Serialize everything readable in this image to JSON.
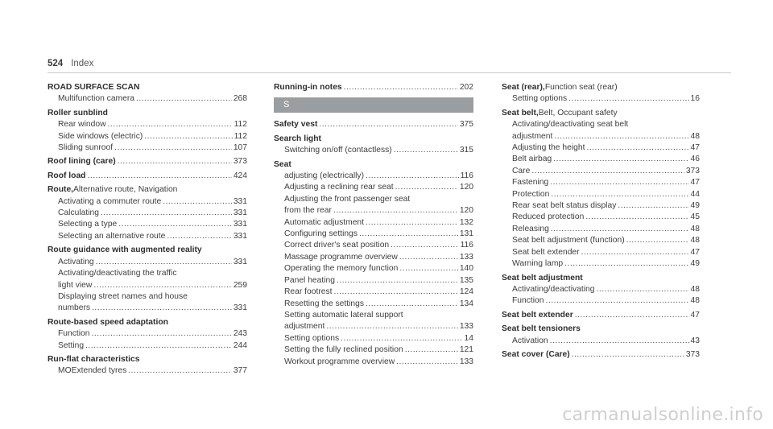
{
  "header": {
    "page_number": "524",
    "title": "Index"
  },
  "col1": [
    {
      "term": "ROAD SURFACE SCAN",
      "subs": [
        {
          "lines": [
            "Multifunction camera"
          ],
          "page": "268"
        }
      ]
    },
    {
      "term": "Roller sunblind",
      "subs": [
        {
          "lines": [
            "Rear window"
          ],
          "page": "112"
        },
        {
          "lines": [
            "Side windows (electric)"
          ],
          "page": "112"
        },
        {
          "lines": [
            "Sliding sunroof"
          ],
          "page": "107"
        }
      ]
    },
    {
      "term": "Roof lining (care)",
      "page": "373"
    },
    {
      "term": "Roof load",
      "page": "424"
    },
    {
      "term": "Route,",
      "qualifier": " Alternative route, Navigation",
      "subs": [
        {
          "lines": [
            "Activating a commuter route"
          ],
          "page": "331"
        },
        {
          "lines": [
            "Calculating"
          ],
          "page": "331"
        },
        {
          "lines": [
            "Selecting a type"
          ],
          "page": "331"
        },
        {
          "lines": [
            "Selecting an alternative route"
          ],
          "page": "331"
        }
      ]
    },
    {
      "term": "Route guidance with augmented reality",
      "subs": [
        {
          "lines": [
            "Activating"
          ],
          "page": "331"
        },
        {
          "lines": [
            "Activating/deactivating the traffic",
            "light view"
          ],
          "page": "259"
        },
        {
          "lines": [
            "Displaying street names and house",
            "numbers"
          ],
          "page": "331"
        }
      ]
    },
    {
      "term": "Route-based speed adaptation",
      "subs": [
        {
          "lines": [
            "Function"
          ],
          "page": "243"
        },
        {
          "lines": [
            "Setting"
          ],
          "page": "244"
        }
      ]
    },
    {
      "term": "Run-flat characteristics",
      "subs": [
        {
          "lines": [
            "MOExtended tyres"
          ],
          "page": "377"
        }
      ]
    }
  ],
  "col2_top": [
    {
      "term": "Running-in notes",
      "page": "202"
    }
  ],
  "section_letter": "S",
  "col2": [
    {
      "term": "Safety vest",
      "page": "375"
    },
    {
      "term": "Search light",
      "subs": [
        {
          "lines": [
            "Switching on/off (contactless)"
          ],
          "page": "315"
        }
      ]
    },
    {
      "term": "Seat",
      "subs": [
        {
          "lines": [
            "adjusting (electrically)"
          ],
          "page": "116"
        },
        {
          "lines": [
            "Adjusting a reclining rear seat"
          ],
          "page": "120"
        },
        {
          "lines": [
            "Adjusting the front passenger seat",
            "from the rear"
          ],
          "page": "120"
        },
        {
          "lines": [
            "Automatic adjustment"
          ],
          "page": "132"
        },
        {
          "lines": [
            "Configuring settings"
          ],
          "page": "131"
        },
        {
          "lines": [
            "Correct driver's seat position"
          ],
          "page": "116"
        },
        {
          "lines": [
            "Massage programme overview"
          ],
          "page": "133"
        },
        {
          "lines": [
            "Operating the memory function"
          ],
          "page": "140"
        },
        {
          "lines": [
            "Panel heating"
          ],
          "page": "135"
        },
        {
          "lines": [
            "Rear footrest"
          ],
          "page": "124"
        },
        {
          "lines": [
            "Resetting the settings"
          ],
          "page": "134"
        },
        {
          "lines": [
            "Setting automatic lateral support",
            "adjustment"
          ],
          "page": "133"
        },
        {
          "lines": [
            "Setting options"
          ],
          "page": "14"
        },
        {
          "lines": [
            "Setting the fully reclined position"
          ],
          "page": "121"
        },
        {
          "lines": [
            "Workout programme overview"
          ],
          "page": "133"
        }
      ]
    }
  ],
  "col3": [
    {
      "term": "Seat (rear),",
      "qualifier": " Function seat (rear)",
      "subs": [
        {
          "lines": [
            "Setting options"
          ],
          "page": "16"
        }
      ]
    },
    {
      "term": "Seat belt,",
      "qualifier": " Belt, Occupant safety",
      "subs": [
        {
          "lines": [
            "Activating/deactivating seat belt",
            "adjustment"
          ],
          "page": "48"
        },
        {
          "lines": [
            "Adjusting the height"
          ],
          "page": "47"
        },
        {
          "lines": [
            "Belt airbag"
          ],
          "page": "46"
        },
        {
          "lines": [
            "Care"
          ],
          "page": "373"
        },
        {
          "lines": [
            "Fastening"
          ],
          "page": "47"
        },
        {
          "lines": [
            "Protection"
          ],
          "page": "44"
        },
        {
          "lines": [
            "Rear seat belt status display"
          ],
          "page": "49"
        },
        {
          "lines": [
            "Reduced protection"
          ],
          "page": "45"
        },
        {
          "lines": [
            "Releasing"
          ],
          "page": "48"
        },
        {
          "lines": [
            "Seat belt adjustment (function)"
          ],
          "page": "48"
        },
        {
          "lines": [
            "Seat belt extender"
          ],
          "page": "47"
        },
        {
          "lines": [
            "Warning lamp"
          ],
          "page": "49"
        }
      ]
    },
    {
      "term": "Seat belt adjustment",
      "subs": [
        {
          "lines": [
            "Activating/deactivating"
          ],
          "page": "48"
        },
        {
          "lines": [
            "Function"
          ],
          "page": "48"
        }
      ]
    },
    {
      "term": "Seat belt extender",
      "page": "47"
    },
    {
      "term": "Seat belt tensioners",
      "subs": [
        {
          "lines": [
            "Activation"
          ],
          "page": "43"
        }
      ]
    },
    {
      "term": "Seat cover (Care)",
      "page": "373"
    }
  ],
  "watermark": "carmanualsonline.info"
}
